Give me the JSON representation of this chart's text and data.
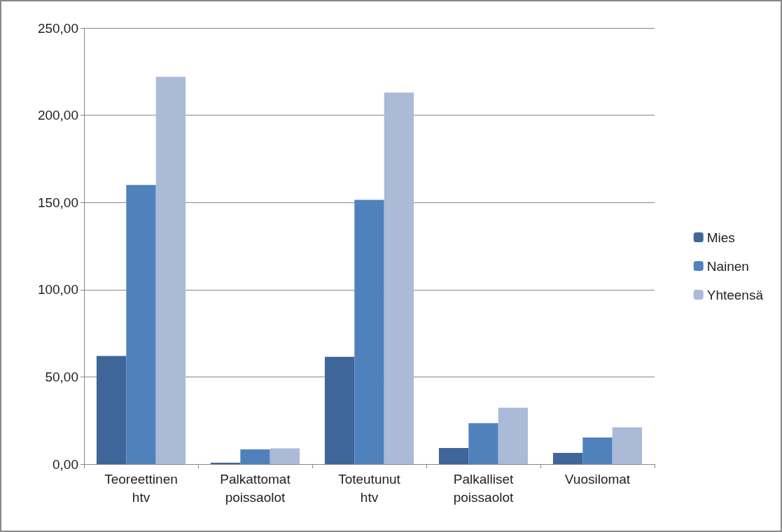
{
  "chart_data": {
    "type": "bar",
    "categories": [
      "Teoreettinen htv",
      "Palkattomat poissaolot",
      "Toteutunut htv",
      "Palkalliset poissaolot",
      "Vuosilomat"
    ],
    "series": [
      {
        "name": "Mies",
        "color": "#3f6699",
        "values": [
          62,
          0.8,
          61.5,
          9.2,
          6.4
        ]
      },
      {
        "name": "Nainen",
        "color": "#4f81bd",
        "values": [
          160,
          8.4,
          151.5,
          23.5,
          15.2
        ]
      },
      {
        "name": "Yhteensä",
        "color": "#aabad7",
        "values": [
          222,
          9,
          213,
          32.3,
          21.1
        ]
      }
    ],
    "ylim": [
      0,
      250
    ],
    "yticks": [
      {
        "value": 0,
        "label": "0,00"
      },
      {
        "value": 50,
        "label": "50,00"
      },
      {
        "value": 100,
        "label": "100,00"
      },
      {
        "value": 150,
        "label": "150,00"
      },
      {
        "value": 200,
        "label": "200,00"
      },
      {
        "value": 250,
        "label": "250,00"
      }
    ],
    "grid": "y",
    "legend": "right"
  }
}
